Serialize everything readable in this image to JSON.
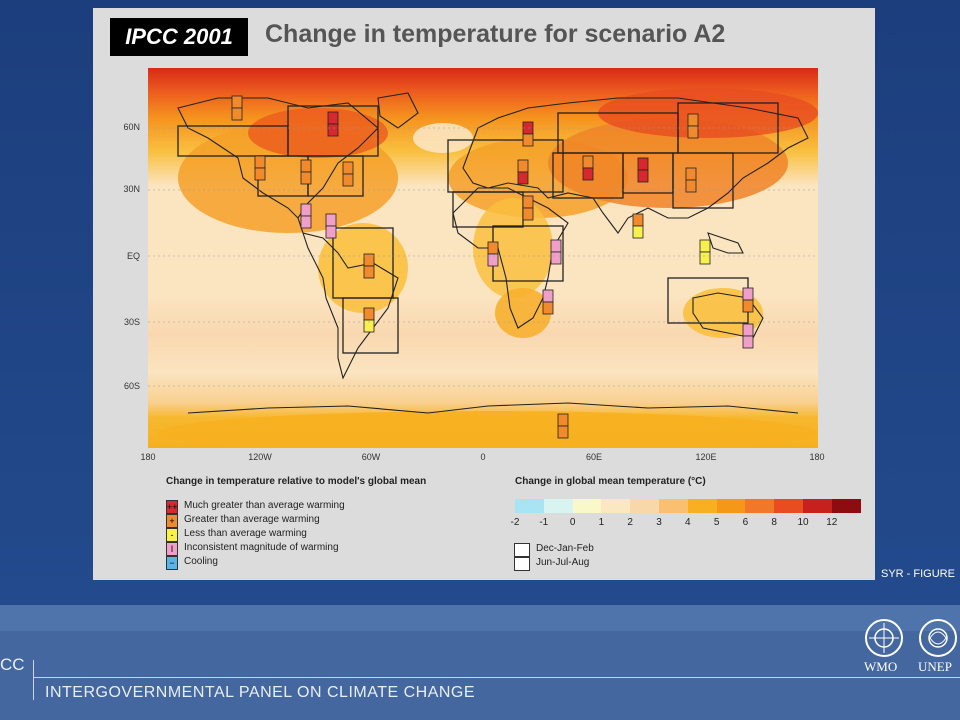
{
  "badge": "IPCC 2001",
  "title": "Change in temperature for scenario A2",
  "lat_labels": [
    "60N",
    "30N",
    "EQ",
    "30S",
    "60S"
  ],
  "lon_labels": [
    "180",
    "120W",
    "60W",
    "0",
    "60E",
    "120E",
    "180"
  ],
  "legend_left": {
    "title": "Change in temperature relative to model's global mean",
    "items": [
      {
        "label": "Much greater than average warming",
        "color": "#d7282f",
        "symbol": "++"
      },
      {
        "label": "Greater than average warming",
        "color": "#f08a2c",
        "symbol": "+"
      },
      {
        "label": "Less than average warming",
        "color": "#f8f04c",
        "symbol": "-"
      },
      {
        "label": "Inconsistent magnitude of warming",
        "color": "#f0a0c8",
        "symbol": "I"
      },
      {
        "label": "Cooling",
        "color": "#5ab4e8",
        "symbol": "−"
      }
    ]
  },
  "legend_right": {
    "title": "Change in global mean temperature (°C)",
    "ticks": [
      "-2",
      "-1",
      "0",
      "1",
      "2",
      "3",
      "4",
      "5",
      "6",
      "8",
      "10",
      "12"
    ],
    "colors": [
      "#a8e4f4",
      "#d8f4f0",
      "#f8f8c8",
      "#fbe8c0",
      "#f8d8a8",
      "#f8c070",
      "#f8b020",
      "#f59818",
      "#f07828",
      "#e84c20",
      "#c8201c",
      "#8c0c10"
    ]
  },
  "seasons": [
    "Dec-Jan-Feb",
    "Jun-Jul-Aug"
  ],
  "figure_ref": "SYR - FIGURE",
  "footer": {
    "org_short": "CC",
    "org_name": "INTERGOVERNMENTAL PANEL ON CLIMATE CHANGE",
    "logos": [
      "WMO",
      "UNEP"
    ]
  }
}
